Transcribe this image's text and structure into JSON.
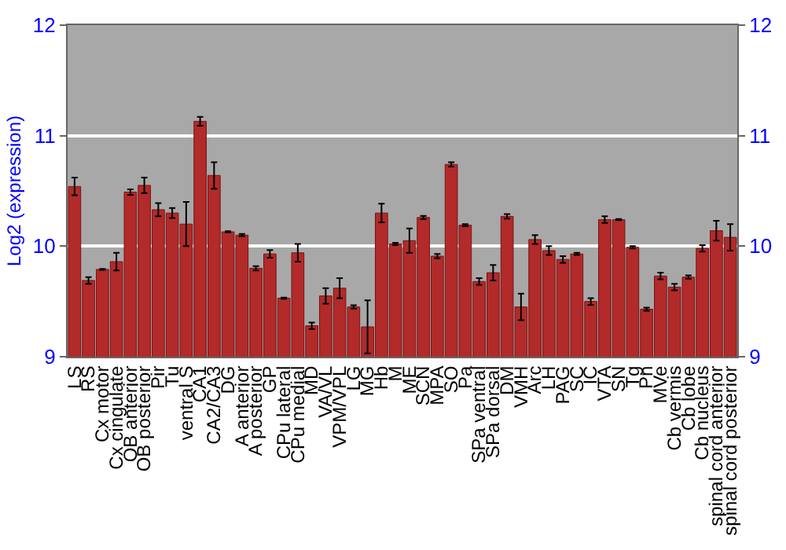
{
  "chart_data": {
    "type": "bar",
    "ylabel": "Log2 (expression)",
    "categories": [
      "LS",
      "RS",
      "Cx motor",
      "Cx cingulate",
      "OB anterior",
      "OB posterior",
      "Pir",
      "Tu",
      "ventral S",
      "CA1",
      "CA2/CA3",
      "DG",
      "A anterior",
      "A posterior",
      "GP",
      "CPu lateral",
      "CPu medial",
      "MD",
      "VA/VL",
      "VPM/VPL",
      "LG",
      "MG",
      "Hb",
      "M",
      "ME",
      "SCN",
      "MPA",
      "SO",
      "Pa",
      "SPa ventral",
      "SPa dorsal",
      "DM",
      "VMH",
      "Arc",
      "LH",
      "PAG",
      "SC",
      "IC",
      "VTA",
      "SN",
      "Tg",
      "Pn",
      "MVe",
      "Cb vermis",
      "Cb lobe",
      "Cb nucleus",
      "spinal cord anterior",
      "spinal cord posterior"
    ],
    "values": [
      10.54,
      9.69,
      9.79,
      9.86,
      10.49,
      10.55,
      10.33,
      10.3,
      10.2,
      11.13,
      10.64,
      10.13,
      10.1,
      9.8,
      9.93,
      9.53,
      9.94,
      9.28,
      9.55,
      9.62,
      9.45,
      9.27,
      10.3,
      10.02,
      10.05,
      10.26,
      9.91,
      10.74,
      10.19,
      9.68,
      9.76,
      10.27,
      9.45,
      10.06,
      9.96,
      9.88,
      9.93,
      9.5,
      10.24,
      10.24,
      9.99,
      9.43,
      9.73,
      9.63,
      9.72,
      9.98,
      10.14,
      10.08
    ],
    "errors": [
      0.08,
      0.03,
      0.005,
      0.08,
      0.025,
      0.07,
      0.06,
      0.045,
      0.2,
      0.04,
      0.12,
      0.005,
      0.01,
      0.02,
      0.035,
      0.005,
      0.08,
      0.03,
      0.07,
      0.09,
      0.015,
      0.24,
      0.085,
      0.01,
      0.11,
      0.015,
      0.02,
      0.02,
      0.01,
      0.03,
      0.07,
      0.02,
      0.12,
      0.04,
      0.04,
      0.03,
      0.01,
      0.03,
      0.03,
      0.005,
      0.01,
      0.015,
      0.03,
      0.03,
      0.015,
      0.03,
      0.09,
      0.12
    ],
    "color": "#b22a2a",
    "ylim": [
      9,
      12
    ],
    "yticks": [
      9,
      10,
      11,
      12
    ],
    "y2lim": [
      9,
      12
    ],
    "y2ticks": [
      9,
      10,
      11,
      12
    ],
    "grid": "y"
  }
}
